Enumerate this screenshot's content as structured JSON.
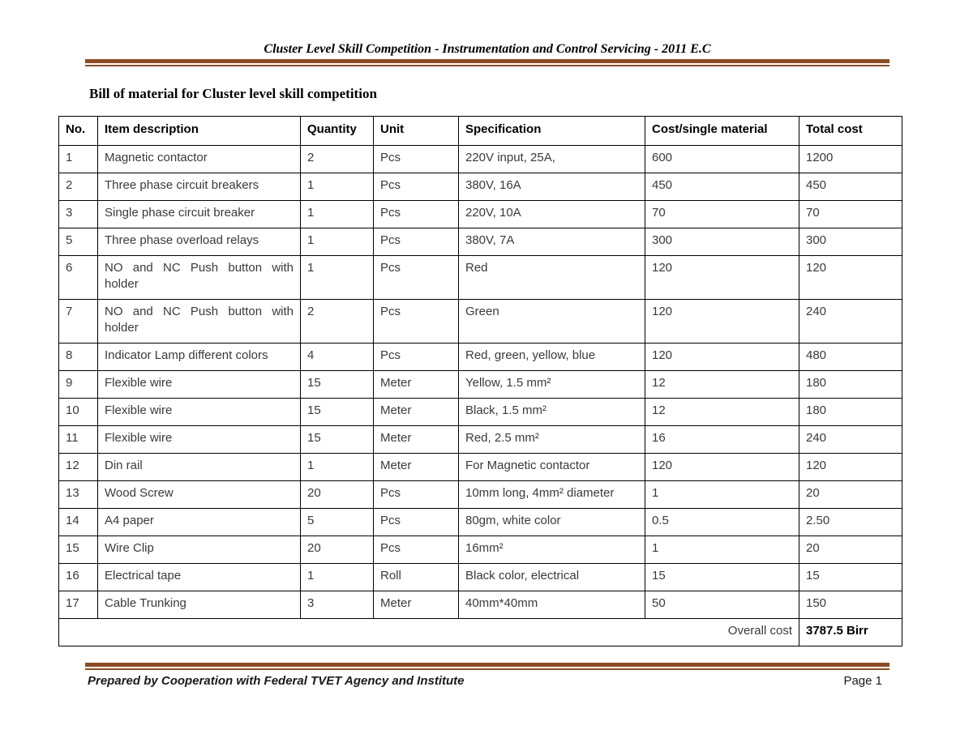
{
  "colors": {
    "rule": "#8B4C24"
  },
  "header": {
    "title": "Cluster Level Skill Competition - Instrumentation and Control Servicing - 2011 E.C"
  },
  "document": {
    "heading": "Bill of material for Cluster level skill competition"
  },
  "table": {
    "columns": [
      "No.",
      "Item description",
      "Quantity",
      "Unit",
      "Specification",
      "Cost/single material",
      "Total cost"
    ],
    "rows": [
      [
        "1",
        "Magnetic contactor",
        "2",
        "Pcs",
        "220V input, 25A,",
        "600",
        "1200"
      ],
      [
        "2",
        "Three phase circuit breakers",
        "1",
        "Pcs",
        "380V, 16A",
        "450",
        "450"
      ],
      [
        "3",
        "Single phase circuit breaker",
        "1",
        "Pcs",
        "220V, 10A",
        "70",
        "70"
      ],
      [
        "5",
        "Three phase overload relays",
        "1",
        "Pcs",
        "380V, 7A",
        "300",
        "300"
      ],
      [
        "6",
        "NO and NC Push button with holder",
        "1",
        "Pcs",
        "Red",
        "120",
        "120"
      ],
      [
        "7",
        "NO and NC Push button with holder",
        "2",
        "Pcs",
        "Green",
        "120",
        "240"
      ],
      [
        "8",
        "Indicator Lamp different colors",
        "4",
        "Pcs",
        "Red, green, yellow, blue",
        "120",
        "480"
      ],
      [
        "9",
        "Flexible wire",
        "15",
        "Meter",
        "Yellow, 1.5 mm²",
        "12",
        "180"
      ],
      [
        "10",
        "Flexible wire",
        "15",
        "Meter",
        "Black, 1.5 mm²",
        "12",
        "180"
      ],
      [
        "11",
        "Flexible wire",
        "15",
        "Meter",
        "Red, 2.5 mm²",
        "16",
        "240"
      ],
      [
        "12",
        "Din rail",
        "1",
        "Meter",
        "For Magnetic contactor",
        "120",
        "120"
      ],
      [
        "13",
        "Wood Screw",
        "20",
        "Pcs",
        "10mm long, 4mm² diameter",
        "1",
        "20"
      ],
      [
        "14",
        "A4 paper",
        "5",
        "Pcs",
        "80gm, white color",
        "0.5",
        "2.50"
      ],
      [
        "15",
        "Wire Clip",
        "20",
        "Pcs",
        "16mm²",
        "1",
        "20"
      ],
      [
        "16",
        "Electrical tape",
        "1",
        "Roll",
        "Black color, electrical",
        "15",
        "15"
      ],
      [
        "17",
        "Cable Trunking",
        "3",
        "Meter",
        "40mm*40mm",
        "50",
        "150"
      ]
    ],
    "overall": {
      "label": "Overall cost",
      "value": "3787.5 Birr"
    }
  },
  "footer": {
    "left": "Prepared by Cooperation with Federal TVET Agency and Institute",
    "right": "Page 1"
  }
}
